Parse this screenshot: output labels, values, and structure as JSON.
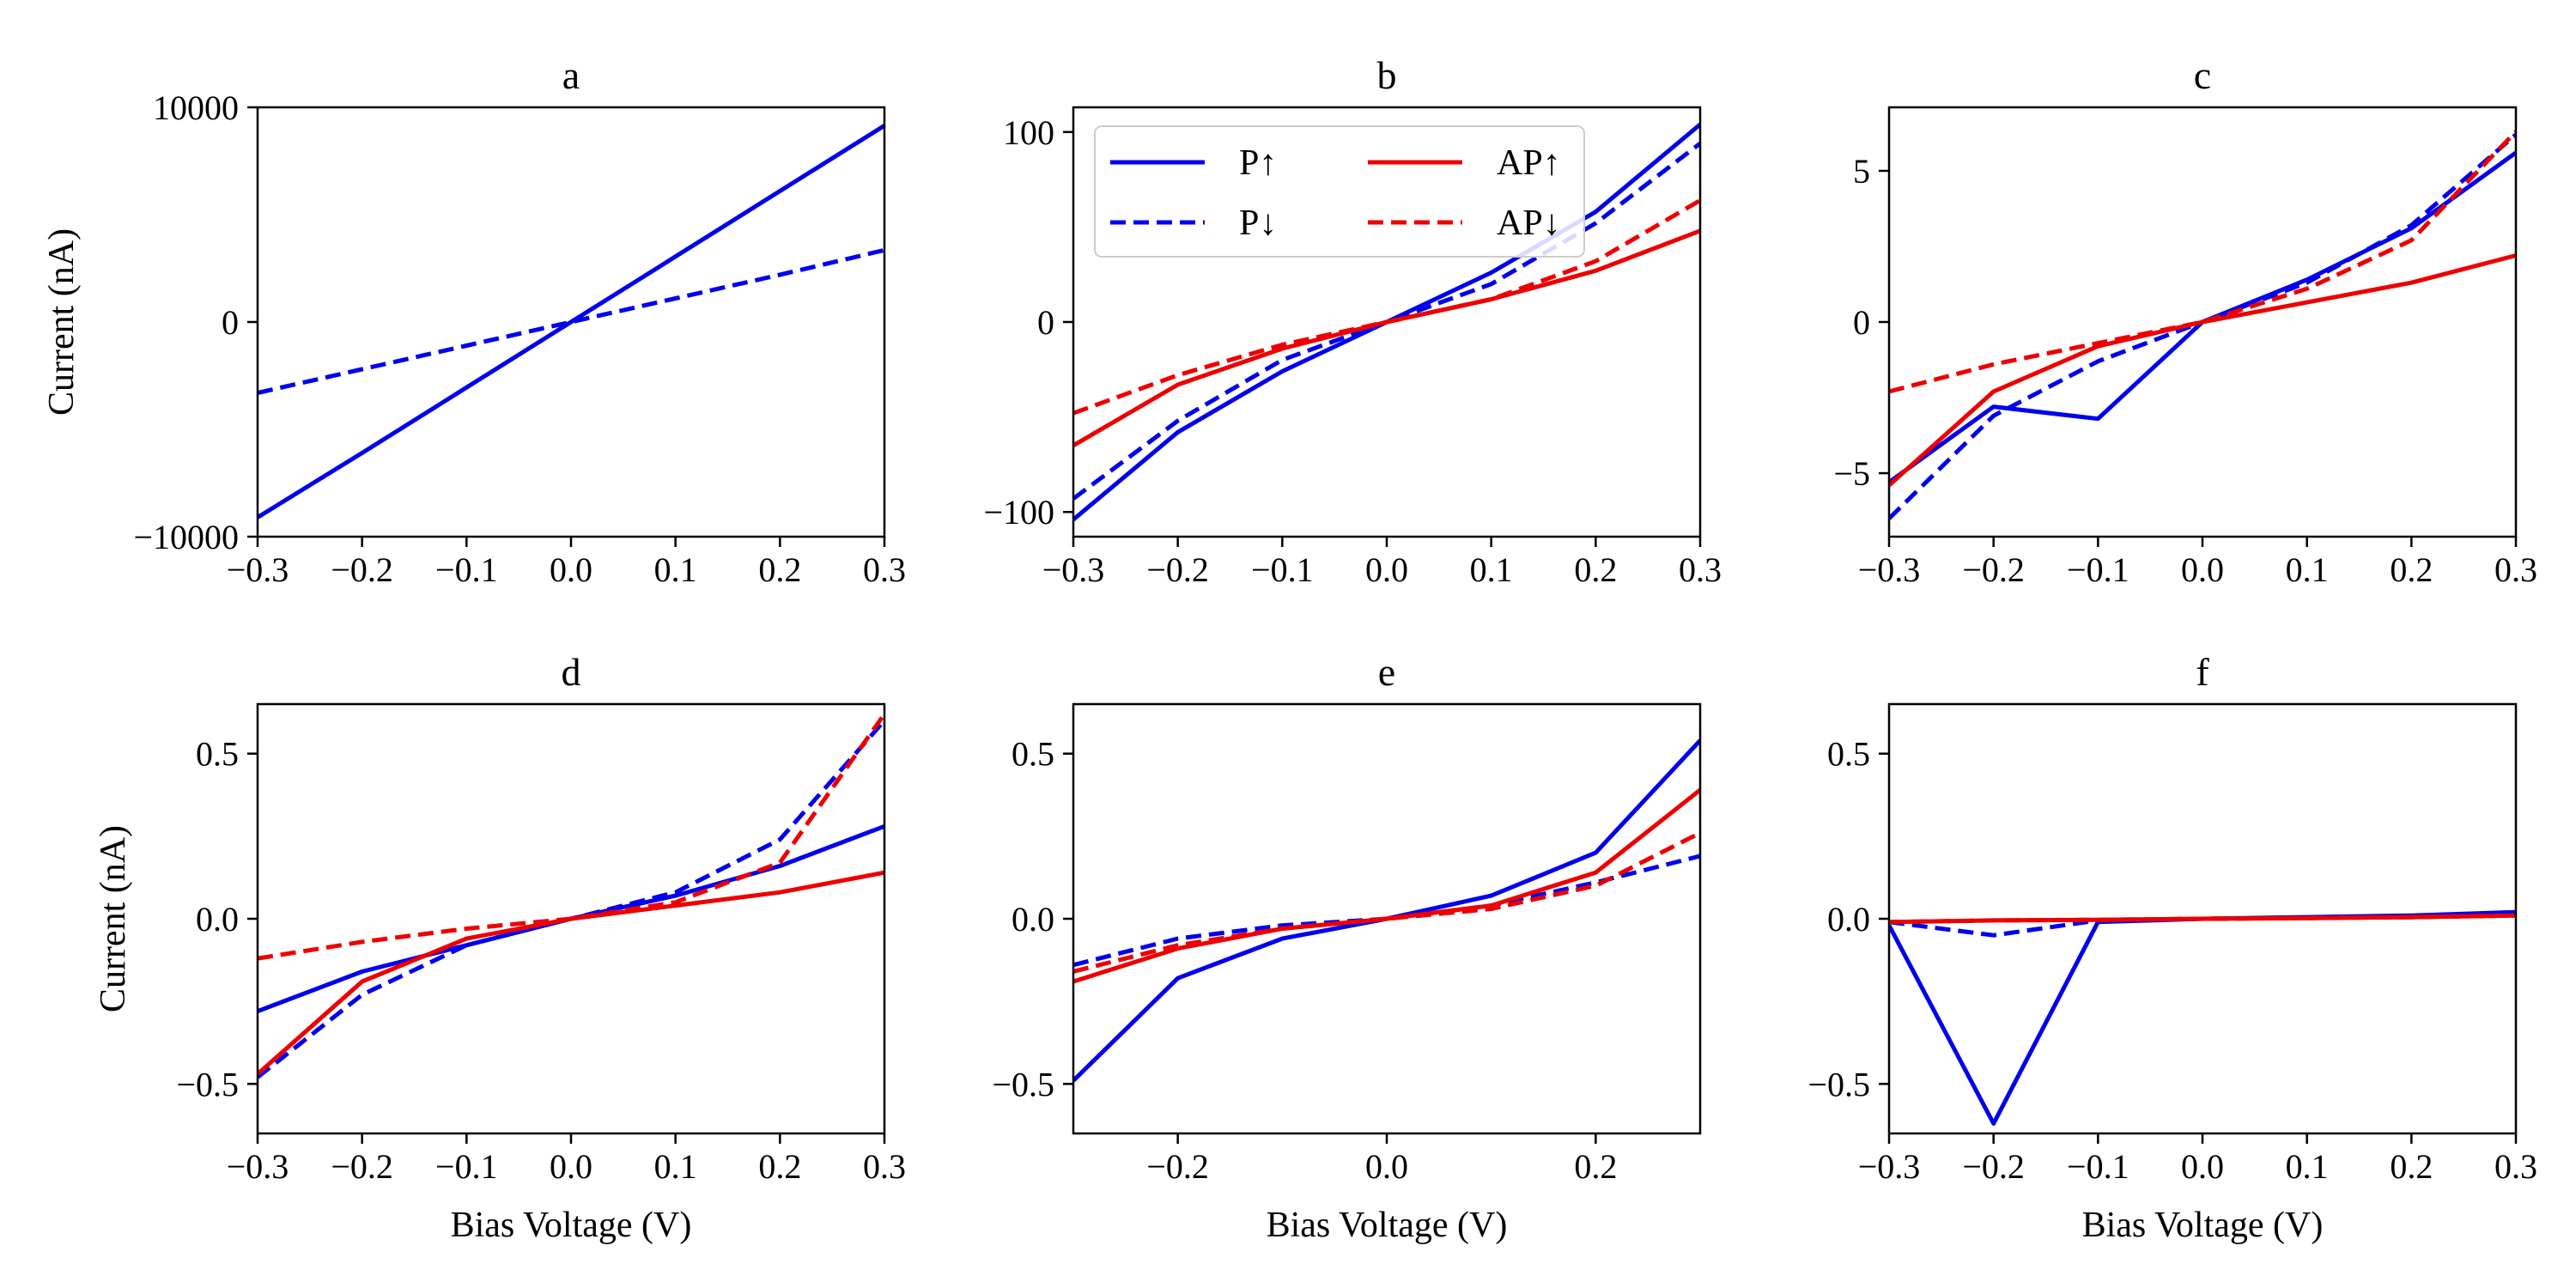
{
  "colors": {
    "p": "#0000ee",
    "ap": "#ee0000"
  },
  "legend": [
    {
      "label": "P↑",
      "color": "p",
      "dash": false
    },
    {
      "label": "P↓",
      "color": "p",
      "dash": true
    },
    {
      "label": "AP↑",
      "color": "ap",
      "dash": false
    },
    {
      "label": "AP↓",
      "color": "ap",
      "dash": true
    }
  ],
  "chart_data": [
    {
      "type": "line",
      "title": "a",
      "xlabel": "",
      "ylabel": "Current (nA)",
      "xlim": [
        -0.3,
        0.3
      ],
      "ylim": [
        -10000,
        10000
      ],
      "xticks": [
        -0.3,
        -0.2,
        -0.1,
        0.0,
        0.1,
        0.2,
        0.3
      ],
      "xtick_labels": [
        "−0.3",
        "−0.2",
        "−0.1",
        "0.0",
        "0.1",
        "0.2",
        "0.3"
      ],
      "yticks": [
        -10000,
        0,
        10000
      ],
      "ytick_labels": [
        "−10000",
        "0",
        "10000"
      ],
      "x": [
        -0.3,
        -0.2,
        -0.1,
        0.0,
        0.1,
        0.2,
        0.3
      ],
      "series": [
        {
          "name": "P↑",
          "color": "p",
          "dash": false,
          "values": [
            -9100,
            -6100,
            -3050,
            0,
            3050,
            6100,
            9150
          ]
        },
        {
          "name": "P↓",
          "color": "p",
          "dash": true,
          "values": [
            -3300,
            -2200,
            -1100,
            0,
            1100,
            2200,
            3350
          ]
        }
      ]
    },
    {
      "type": "line",
      "title": "b",
      "xlabel": "",
      "ylabel": "",
      "xlim": [
        -0.3,
        0.3
      ],
      "ylim": [
        -113,
        113
      ],
      "xticks": [
        -0.3,
        -0.2,
        -0.1,
        0.0,
        0.1,
        0.2,
        0.3
      ],
      "xtick_labels": [
        "−0.3",
        "−0.2",
        "−0.1",
        "0.0",
        "0.1",
        "0.2",
        "0.3"
      ],
      "yticks": [
        -100,
        0,
        100
      ],
      "ytick_labels": [
        "−100",
        "0",
        "100"
      ],
      "x": [
        -0.3,
        -0.2,
        -0.1,
        0.0,
        0.1,
        0.2,
        0.3
      ],
      "legend": true,
      "series": [
        {
          "name": "P↑",
          "color": "p",
          "dash": false,
          "values": [
            -104,
            -58,
            -26,
            0,
            26,
            58,
            104
          ]
        },
        {
          "name": "P↓",
          "color": "p",
          "dash": true,
          "values": [
            -93,
            -52,
            -20,
            0,
            20,
            52,
            94
          ]
        },
        {
          "name": "AP↑",
          "color": "ap",
          "dash": false,
          "values": [
            -65,
            -33,
            -14,
            0,
            12,
            27,
            48
          ]
        },
        {
          "name": "AP↓",
          "color": "ap",
          "dash": true,
          "values": [
            -48,
            -28,
            -12,
            0,
            12,
            32,
            64
          ]
        }
      ]
    },
    {
      "type": "line",
      "title": "c",
      "xlabel": "",
      "ylabel": "",
      "xlim": [
        -0.3,
        0.3
      ],
      "ylim": [
        -7.1,
        7.1
      ],
      "xticks": [
        -0.3,
        -0.2,
        -0.1,
        0.0,
        0.1,
        0.2,
        0.3
      ],
      "xtick_labels": [
        "−0.3",
        "−0.2",
        "−0.1",
        "0.0",
        "0.1",
        "0.2",
        "0.3"
      ],
      "yticks": [
        -5,
        0,
        5
      ],
      "ytick_labels": [
        "−5",
        "0",
        "5"
      ],
      "x": [
        -0.3,
        -0.2,
        -0.1,
        0.0,
        0.1,
        0.2,
        0.3
      ],
      "series": [
        {
          "name": "P↑",
          "color": "p",
          "dash": false,
          "values": [
            -5.3,
            -2.8,
            -3.2,
            0,
            1.4,
            3.1,
            5.6
          ]
        },
        {
          "name": "P↓",
          "color": "p",
          "dash": true,
          "values": [
            -6.5,
            -3.1,
            -1.3,
            0,
            1.3,
            3.2,
            6.2
          ]
        },
        {
          "name": "AP↑",
          "color": "ap",
          "dash": false,
          "values": [
            -5.4,
            -2.3,
            -0.8,
            0,
            0.65,
            1.3,
            2.2
          ]
        },
        {
          "name": "AP↓",
          "color": "ap",
          "dash": true,
          "values": [
            -2.3,
            -1.4,
            -0.7,
            0,
            1.1,
            2.7,
            6.3
          ]
        }
      ]
    },
    {
      "type": "line",
      "title": "d",
      "xlabel": "Bias Voltage (V)",
      "ylabel": "Current (nA)",
      "xlim": [
        -0.3,
        0.3
      ],
      "ylim": [
        -0.65,
        0.65
      ],
      "xticks": [
        -0.3,
        -0.2,
        -0.1,
        0.0,
        0.1,
        0.2,
        0.3
      ],
      "xtick_labels": [
        "−0.3",
        "−0.2",
        "−0.1",
        "0.0",
        "0.1",
        "0.2",
        "0.3"
      ],
      "yticks": [
        -0.5,
        0.0,
        0.5
      ],
      "ytick_labels": [
        "−0.5",
        "0.0",
        "0.5"
      ],
      "x": [
        -0.3,
        -0.2,
        -0.1,
        0.0,
        0.1,
        0.2,
        0.3
      ],
      "series": [
        {
          "name": "P↑",
          "color": "p",
          "dash": false,
          "values": [
            -0.28,
            -0.16,
            -0.08,
            0,
            0.07,
            0.16,
            0.28
          ]
        },
        {
          "name": "P↓",
          "color": "p",
          "dash": true,
          "values": [
            -0.48,
            -0.23,
            -0.08,
            0,
            0.08,
            0.24,
            0.6
          ]
        },
        {
          "name": "AP↑",
          "color": "ap",
          "dash": false,
          "values": [
            -0.47,
            -0.19,
            -0.06,
            0,
            0.04,
            0.08,
            0.14
          ]
        },
        {
          "name": "AP↓",
          "color": "ap",
          "dash": true,
          "values": [
            -0.12,
            -0.07,
            -0.03,
            0,
            0.05,
            0.17,
            0.62
          ]
        }
      ]
    },
    {
      "type": "line",
      "title": "e",
      "xlabel": "Bias Voltage (V)",
      "ylabel": "",
      "xlim": [
        -0.3,
        0.3
      ],
      "ylim": [
        -0.65,
        0.65
      ],
      "xticks": [
        -0.2,
        0.0,
        0.2
      ],
      "xtick_labels": [
        "−0.2",
        "0.0",
        "0.2"
      ],
      "yticks": [
        -0.5,
        0.0,
        0.5
      ],
      "ytick_labels": [
        "−0.5",
        "0.0",
        "0.5"
      ],
      "x": [
        -0.3,
        -0.2,
        -0.1,
        0.0,
        0.1,
        0.2,
        0.3
      ],
      "series": [
        {
          "name": "P↑",
          "color": "p",
          "dash": false,
          "values": [
            -0.49,
            -0.18,
            -0.06,
            0,
            0.07,
            0.2,
            0.54
          ]
        },
        {
          "name": "P↓",
          "color": "p",
          "dash": true,
          "values": [
            -0.14,
            -0.06,
            -0.02,
            0,
            0.04,
            0.11,
            0.19
          ]
        },
        {
          "name": "AP↑",
          "color": "ap",
          "dash": false,
          "values": [
            -0.19,
            -0.09,
            -0.03,
            0,
            0.04,
            0.14,
            0.39
          ]
        },
        {
          "name": "AP↓",
          "color": "ap",
          "dash": true,
          "values": [
            -0.16,
            -0.08,
            -0.03,
            0,
            0.03,
            0.1,
            0.26
          ]
        }
      ]
    },
    {
      "type": "line",
      "title": "f",
      "xlabel": "Bias Voltage (V)",
      "ylabel": "",
      "xlim": [
        -0.3,
        0.3
      ],
      "ylim": [
        -0.65,
        0.65
      ],
      "xticks": [
        -0.3,
        -0.2,
        -0.1,
        0.0,
        0.1,
        0.2,
        0.3
      ],
      "xtick_labels": [
        "−0.3",
        "−0.2",
        "−0.1",
        "0.0",
        "0.1",
        "0.2",
        "0.3"
      ],
      "yticks": [
        -0.5,
        0.0,
        0.5
      ],
      "ytick_labels": [
        "−0.5",
        "0.0",
        "0.5"
      ],
      "x": [
        -0.3,
        -0.2,
        -0.1,
        0.0,
        0.1,
        0.2,
        0.3
      ],
      "series": [
        {
          "name": "P↑",
          "color": "p",
          "dash": false,
          "values": [
            -0.02,
            -0.62,
            -0.01,
            0,
            0.005,
            0.01,
            0.02
          ]
        },
        {
          "name": "P↓",
          "color": "p",
          "dash": true,
          "values": [
            -0.01,
            -0.05,
            -0.005,
            0,
            0.003,
            0.005,
            0.01
          ]
        },
        {
          "name": "AP↑",
          "color": "ap",
          "dash": false,
          "values": [
            -0.01,
            -0.005,
            -0.003,
            0,
            0.002,
            0.005,
            0.01
          ]
        },
        {
          "name": "AP↓",
          "color": "ap",
          "dash": true,
          "values": [
            -0.01,
            -0.005,
            -0.003,
            0,
            0.002,
            0.005,
            0.01
          ]
        }
      ]
    }
  ]
}
